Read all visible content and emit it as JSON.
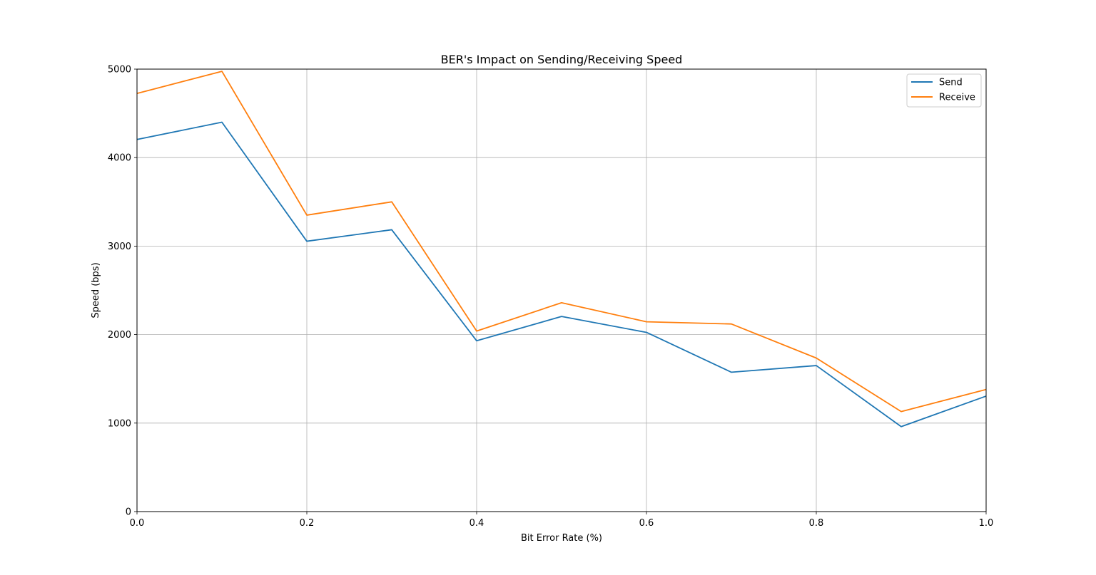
{
  "chart_data": {
    "type": "line",
    "title": "BER's Impact on Sending/Receiving Speed",
    "xlabel": "Bit Error Rate (%)",
    "ylabel": "Speed (bps)",
    "x": [
      0.0,
      0.1,
      0.2,
      0.3,
      0.4,
      0.5,
      0.6,
      0.7,
      0.8,
      0.9,
      1.0
    ],
    "series": [
      {
        "name": "Send",
        "color": "#1f77b4",
        "values": [
          4205,
          4400,
          3055,
          3185,
          1930,
          2205,
          2025,
          1575,
          1650,
          960,
          1305
        ]
      },
      {
        "name": "Receive",
        "color": "#ff7f0e",
        "values": [
          4725,
          4975,
          3350,
          3500,
          2040,
          2360,
          2145,
          2120,
          1735,
          1130,
          1380
        ]
      }
    ],
    "xlim": [
      0.0,
      1.0
    ],
    "ylim": [
      0,
      5000
    ],
    "xticks": [
      "0.0",
      "0.2",
      "0.4",
      "0.6",
      "0.8",
      "1.0"
    ],
    "yticks": [
      "0",
      "1000",
      "2000",
      "3000",
      "4000",
      "5000"
    ],
    "grid": true,
    "legend_position": "top-right"
  }
}
